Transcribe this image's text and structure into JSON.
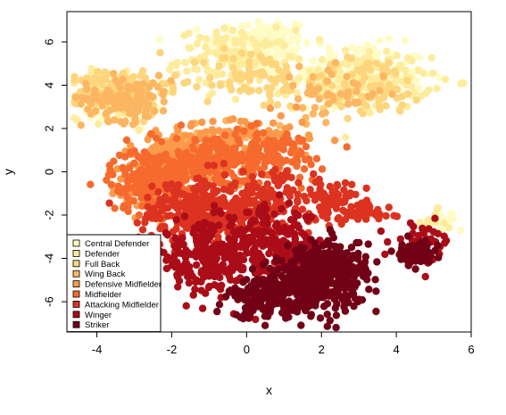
{
  "chart_data": {
    "type": "scatter",
    "title": "",
    "xlabel": "x",
    "ylabel": "y",
    "xlim": [
      -4.8,
      6.0
    ],
    "ylim": [
      -7.4,
      7.4
    ],
    "xticks": [
      -4,
      -2,
      0,
      2,
      4,
      6
    ],
    "yticks": [
      -6,
      -4,
      -2,
      0,
      2,
      4,
      6
    ],
    "grid": false,
    "legend_position": "bottom-left",
    "series": [
      {
        "name": "Central Defender",
        "color": "#fffbc4",
        "clusters": [
          [
            0.4,
            5.8,
            0.9,
            0.9,
            160
          ],
          [
            3.0,
            4.5,
            1.2,
            0.9,
            170
          ],
          [
            -3.3,
            3.3,
            0.7,
            0.6,
            70
          ],
          [
            5.3,
            -2.4,
            0.2,
            0.35,
            15
          ]
        ]
      },
      {
        "name": "Defender",
        "color": "#fdec9c",
        "clusters": [
          [
            -0.3,
            5.2,
            1.0,
            0.9,
            130
          ],
          [
            3.1,
            4.2,
            1.2,
            0.9,
            140
          ],
          [
            -3.6,
            3.5,
            0.7,
            0.7,
            90
          ],
          [
            4.9,
            -2.4,
            0.3,
            0.4,
            15
          ]
        ]
      },
      {
        "name": "Full Back",
        "color": "#fdd57d",
        "clusters": [
          [
            -3.3,
            3.7,
            0.8,
            0.7,
            160
          ],
          [
            0.2,
            4.3,
            0.9,
            0.9,
            80
          ],
          [
            3.2,
            3.9,
            1.1,
            0.9,
            90
          ]
        ]
      },
      {
        "name": "Wing Back",
        "color": "#fcb662",
        "clusters": [
          [
            -3.2,
            3.4,
            0.8,
            0.7,
            120
          ],
          [
            -1.2,
            1.2,
            0.8,
            0.6,
            60
          ],
          [
            2.2,
            3.6,
            1.0,
            0.8,
            50
          ]
        ]
      },
      {
        "name": "Defensive Midfielder",
        "color": "#fb9a4a",
        "clusters": [
          [
            -1.6,
            0.9,
            0.9,
            0.7,
            160
          ],
          [
            0.2,
            1.5,
            1.0,
            0.8,
            100
          ],
          [
            -2.6,
            -0.8,
            0.7,
            0.9,
            60
          ]
        ]
      },
      {
        "name": "Midfielder",
        "color": "#f66a2e",
        "clusters": [
          [
            -2.6,
            -0.4,
            0.7,
            1.0,
            200
          ],
          [
            -0.9,
            0.3,
            1.0,
            0.9,
            200
          ],
          [
            0.6,
            0.8,
            1.0,
            0.8,
            130
          ]
        ]
      },
      {
        "name": "Attacking Midfielder",
        "color": "#dc3220",
        "clusters": [
          [
            -1.5,
            -1.8,
            0.9,
            1.0,
            200
          ],
          [
            0.3,
            -1.5,
            1.0,
            1.0,
            180
          ],
          [
            2.3,
            -1.3,
            0.6,
            0.6,
            70
          ],
          [
            3.1,
            -1.9,
            0.5,
            0.3,
            50
          ]
        ]
      },
      {
        "name": "Winger",
        "color": "#ab0d18",
        "clusters": [
          [
            -1.0,
            -4.0,
            1.0,
            1.1,
            200
          ],
          [
            0.6,
            -3.3,
            1.0,
            1.0,
            200
          ],
          [
            4.7,
            -3.3,
            0.5,
            0.6,
            50
          ]
        ]
      },
      {
        "name": "Striker",
        "color": "#720016",
        "clusters": [
          [
            1.7,
            -5.2,
            0.9,
            0.8,
            320
          ],
          [
            2.3,
            -4.3,
            0.6,
            0.8,
            200
          ],
          [
            0.6,
            -5.9,
            0.7,
            0.6,
            140
          ],
          [
            4.5,
            -3.8,
            0.4,
            0.4,
            50
          ]
        ]
      }
    ]
  }
}
